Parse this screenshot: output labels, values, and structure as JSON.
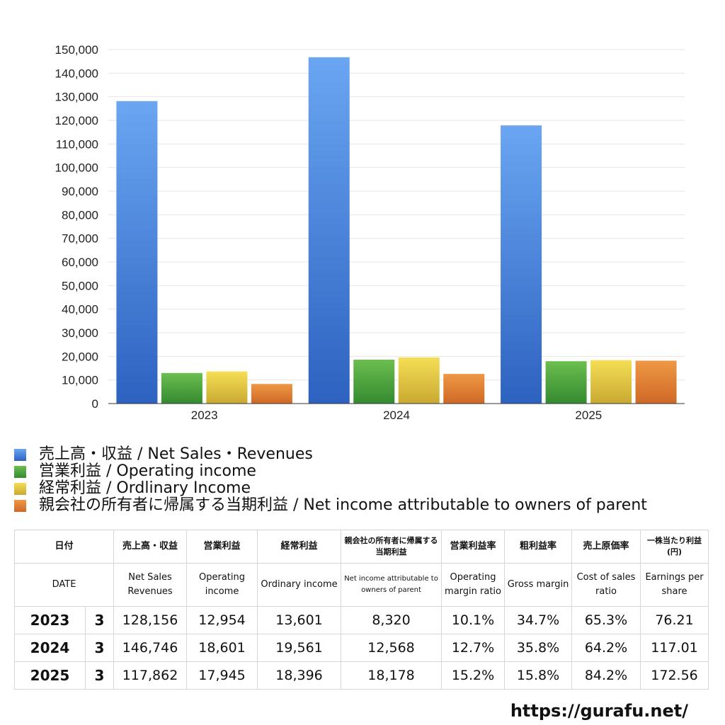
{
  "chart_data": {
    "type": "bar",
    "categories": [
      "2023",
      "2024",
      "2025"
    ],
    "ylim": [
      0,
      150000
    ],
    "yticks": [
      "0",
      "10,000",
      "20,000",
      "30,000",
      "40,000",
      "50,000",
      "60,000",
      "70,000",
      "80,000",
      "90,000",
      "100,000",
      "110,000",
      "120,000",
      "130,000",
      "140,000",
      "150,000"
    ],
    "ytick_values": [
      0,
      10000,
      20000,
      30000,
      40000,
      50000,
      60000,
      70000,
      80000,
      90000,
      100000,
      110000,
      120000,
      130000,
      140000,
      150000
    ],
    "grid": true,
    "legend_position": "bottom",
    "series": [
      {
        "name": "売上高・収益 / Net Sales・Revenues",
        "values": [
          128156,
          146746,
          117862
        ],
        "color_top": "#6aa6f2",
        "color_bottom": "#2d62c0"
      },
      {
        "name": "営業利益 / Operating income",
        "values": [
          12954,
          18601,
          17945
        ],
        "color_top": "#6cbe4f",
        "color_bottom": "#348a30"
      },
      {
        "name": "経常利益 / Ordlinary Income",
        "values": [
          13601,
          19561,
          18396
        ],
        "color_top": "#f5de55",
        "color_bottom": "#c9a932"
      },
      {
        "name": "親会社の所有者に帰属する当期利益 / Net income attributable to owners of parent",
        "values": [
          8320,
          12568,
          18178
        ],
        "color_top": "#ee9845",
        "color_bottom": "#cf6826"
      }
    ]
  },
  "table": {
    "header_ja": [
      "日付",
      "売上高・収益",
      "営業利益",
      "経常利益",
      "親会社の所有者に帰属する当期利益",
      "営業利益率",
      "粗利益率",
      "売上原価率",
      "一株当たり利益(円)"
    ],
    "header_en": [
      "DATE",
      "Net Sales Revenues",
      "Operating income",
      "Ordinary income",
      "Net income attributable to owners of parent",
      "Operating margin ratio",
      "Gross margin",
      "Cost of sales ratio",
      "Earnings per share"
    ],
    "rows": [
      {
        "year": "2023",
        "month": "3",
        "sales": "128,156",
        "op": "12,954",
        "ord": "13,601",
        "net": "8,320",
        "op_margin": "10.1%",
        "gross": "34.7%",
        "cost": "65.3%",
        "eps": "76.21"
      },
      {
        "year": "2024",
        "month": "3",
        "sales": "146,746",
        "op": "18,601",
        "ord": "19,561",
        "net": "12,568",
        "op_margin": "12.7%",
        "gross": "35.8%",
        "cost": "64.2%",
        "eps": "117.01"
      },
      {
        "year": "2025",
        "month": "3",
        "sales": "117,862",
        "op": "17,945",
        "ord": "18,396",
        "net": "18,178",
        "op_margin": "15.2%",
        "gross": "15.8%",
        "cost": "84.2%",
        "eps": "172.56"
      }
    ]
  },
  "source_url": "https://gurafu.net/"
}
